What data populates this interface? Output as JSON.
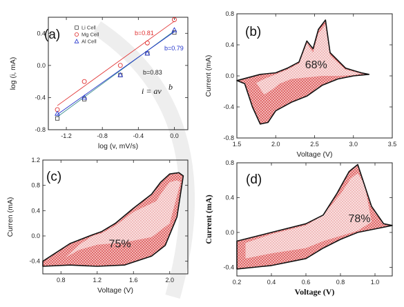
{
  "chart_data": [
    {
      "type": "scatter",
      "panel_label": "(a)",
      "xlabel": "log (v, mV/s)",
      "ylabel": "log (i, mA)",
      "xlim": [
        -1.4,
        0.15
      ],
      "ylim": [
        -0.8,
        0.6
      ],
      "xticks": [
        "-1.2",
        "-0.8",
        "-0.4",
        "0.0"
      ],
      "xtick_values": [
        -1.2,
        -0.8,
        -0.4,
        0.0
      ],
      "yticks": [
        "-0.8",
        "-0.4",
        "0.0",
        "0.4"
      ],
      "ytick_values": [
        -0.8,
        -0.4,
        0.0,
        0.4
      ],
      "legend_position": "top-left",
      "equation": "i = av",
      "equation_exp": "b",
      "series": [
        {
          "name": "Li Cell",
          "marker": "square",
          "color": "#444444",
          "b_label": "b=0.83",
          "fit_color": "#3a8f8f",
          "x": [
            -1.3,
            -1.0,
            -0.6,
            -0.3,
            0.0
          ],
          "y": [
            -0.66,
            -0.42,
            -0.12,
            0.15,
            0.41
          ],
          "fit": [
            [
              -1.3,
              -0.64
            ],
            [
              0.0,
              0.43
            ]
          ]
        },
        {
          "name": "Mg Cell",
          "marker": "circle",
          "color": "#e03030",
          "b_label": "b=0.81",
          "fit_color": "#e03030",
          "x": [
            -1.3,
            -1.0,
            -0.6,
            -0.3,
            0.0
          ],
          "y": [
            -0.55,
            -0.2,
            0.0,
            0.28,
            0.57
          ],
          "fit": [
            [
              -1.3,
              -0.5
            ],
            [
              0.0,
              0.55
            ]
          ]
        },
        {
          "name": "Al Cell",
          "marker": "triangle",
          "color": "#2233cc",
          "b_label": "b=0.79",
          "fit_color": "#2233cc",
          "x": [
            -1.3,
            -1.0,
            -0.6,
            -0.3,
            0.0
          ],
          "y": [
            -0.6,
            -0.4,
            -0.12,
            0.15,
            0.44
          ],
          "fit": [
            [
              -1.3,
              -0.61
            ],
            [
              0.0,
              0.42
            ]
          ]
        }
      ]
    },
    {
      "type": "line",
      "panel_label": "(b)",
      "xlabel": "Voltage (V)",
      "ylabel": "Current (mA)",
      "xlim": [
        1.5,
        3.5
      ],
      "ylim": [
        -0.8,
        0.8
      ],
      "xticks": [
        "1.5",
        "2.0",
        "2.5",
        "3.0",
        "3.5"
      ],
      "xtick_values": [
        1.5,
        2.0,
        2.5,
        3.0,
        3.5
      ],
      "yticks": [
        "-0.8",
        "-0.4",
        "0.0",
        "0.4",
        "0.8"
      ],
      "ytick_values": [
        -0.8,
        -0.4,
        0.0,
        0.4,
        0.8
      ],
      "annotation": "68%",
      "annotation_at": [
        2.52,
        0.1
      ],
      "outer": [
        [
          1.5,
          -0.06
        ],
        [
          1.6,
          -0.1
        ],
        [
          1.7,
          -0.4
        ],
        [
          1.8,
          -0.62
        ],
        [
          1.9,
          -0.6
        ],
        [
          2.0,
          -0.45
        ],
        [
          2.2,
          -0.34
        ],
        [
          2.4,
          -0.26
        ],
        [
          2.6,
          -0.12
        ],
        [
          2.8,
          -0.04
        ],
        [
          3.0,
          0.0
        ],
        [
          3.2,
          0.02
        ],
        [
          3.1,
          0.04
        ],
        [
          2.9,
          0.1
        ],
        [
          2.7,
          0.3
        ],
        [
          2.64,
          0.72
        ],
        [
          2.55,
          0.6
        ],
        [
          2.48,
          0.35
        ],
        [
          2.4,
          0.45
        ],
        [
          2.3,
          0.18
        ],
        [
          2.15,
          0.1
        ],
        [
          2.0,
          0.04
        ],
        [
          1.8,
          0.02
        ],
        [
          1.65,
          -0.02
        ],
        [
          1.5,
          -0.06
        ]
      ],
      "inner": [
        [
          1.75,
          -0.09
        ],
        [
          1.85,
          -0.24
        ],
        [
          1.95,
          -0.18
        ],
        [
          2.05,
          -0.1
        ],
        [
          2.2,
          -0.04
        ],
        [
          2.4,
          -0.02
        ],
        [
          2.6,
          -0.0
        ],
        [
          2.8,
          0.0
        ],
        [
          3.0,
          0.01
        ],
        [
          3.1,
          0.03
        ],
        [
          2.9,
          0.08
        ],
        [
          2.7,
          0.26
        ],
        [
          2.64,
          0.66
        ],
        [
          2.55,
          0.55
        ],
        [
          2.48,
          0.3
        ],
        [
          2.4,
          0.42
        ],
        [
          2.3,
          0.16
        ],
        [
          2.15,
          0.08
        ],
        [
          2.0,
          0.02
        ],
        [
          1.85,
          -0.04
        ],
        [
          1.75,
          -0.09
        ]
      ]
    },
    {
      "type": "line",
      "panel_label": "(c)",
      "xlabel": "Voltage (V)",
      "ylabel": "Curren (mA)",
      "xlim": [
        0.6,
        2.2
      ],
      "ylim": [
        -0.6,
        1.2
      ],
      "xticks": [
        "0.8",
        "1.2",
        "1.6",
        "2.0"
      ],
      "xtick_values": [
        0.8,
        1.2,
        1.6,
        2.0
      ],
      "yticks": [
        "-0.4",
        "0.0",
        "0.4",
        "0.8",
        "1.2"
      ],
      "ytick_values": [
        -0.4,
        0.0,
        0.4,
        0.8,
        1.2
      ],
      "annotation": "75%",
      "annotation_at": [
        1.45,
        -0.18
      ],
      "outer": [
        [
          0.6,
          -0.48
        ],
        [
          0.9,
          -0.46
        ],
        [
          1.2,
          -0.48
        ],
        [
          1.5,
          -0.46
        ],
        [
          1.8,
          -0.32
        ],
        [
          1.95,
          -0.15
        ],
        [
          2.08,
          0.3
        ],
        [
          2.15,
          0.95
        ],
        [
          2.1,
          1.0
        ],
        [
          2.0,
          0.98
        ],
        [
          1.9,
          0.85
        ],
        [
          1.8,
          0.66
        ],
        [
          1.6,
          0.44
        ],
        [
          1.4,
          0.2
        ],
        [
          1.25,
          0.07
        ],
        [
          1.15,
          0.02
        ],
        [
          0.9,
          -0.12
        ],
        [
          0.6,
          -0.4
        ]
      ],
      "inner": [
        [
          0.85,
          -0.34
        ],
        [
          1.0,
          -0.22
        ],
        [
          1.2,
          -0.14
        ],
        [
          1.5,
          -0.1
        ],
        [
          1.8,
          -0.02
        ],
        [
          2.0,
          0.2
        ],
        [
          2.12,
          0.85
        ],
        [
          2.08,
          0.88
        ],
        [
          2.0,
          0.85
        ],
        [
          1.92,
          0.7
        ],
        [
          1.85,
          0.55
        ],
        [
          1.6,
          0.38
        ],
        [
          1.4,
          0.16
        ],
        [
          1.25,
          0.04
        ],
        [
          1.15,
          0.0
        ],
        [
          1.0,
          -0.14
        ],
        [
          0.85,
          -0.34
        ]
      ]
    },
    {
      "type": "line",
      "panel_label": "(d)",
      "xlabel": "Voltage (V)",
      "ylabel": "Current (mA)",
      "xlim": [
        0.2,
        1.1
      ],
      "ylim": [
        -0.5,
        0.8
      ],
      "xticks": [
        "0.2",
        "0.4",
        "0.6",
        "0.8",
        "1.0"
      ],
      "xtick_values": [
        0.2,
        0.4,
        0.6,
        0.8,
        1.0
      ],
      "yticks": [
        "-0.4",
        "0.0",
        "0.4",
        "0.8"
      ],
      "ytick_values": [
        -0.4,
        0.0,
        0.4,
        0.8
      ],
      "annotation": "78%",
      "annotation_at": [
        0.91,
        0.12
      ],
      "outer": [
        [
          0.2,
          -0.42
        ],
        [
          0.4,
          -0.38
        ],
        [
          0.6,
          -0.3
        ],
        [
          0.7,
          -0.18
        ],
        [
          0.8,
          -0.08
        ],
        [
          0.9,
          0.0
        ],
        [
          1.0,
          0.04
        ],
        [
          1.1,
          0.08
        ],
        [
          1.05,
          0.1
        ],
        [
          0.98,
          0.3
        ],
        [
          0.9,
          0.78
        ],
        [
          0.85,
          0.7
        ],
        [
          0.78,
          0.45
        ],
        [
          0.7,
          0.2
        ],
        [
          0.6,
          0.1
        ],
        [
          0.4,
          0.0
        ],
        [
          0.2,
          -0.1
        ]
      ],
      "inner": [
        [
          0.25,
          -0.3
        ],
        [
          0.4,
          -0.24
        ],
        [
          0.6,
          -0.18
        ],
        [
          0.7,
          -0.1
        ],
        [
          0.8,
          -0.04
        ],
        [
          0.9,
          0.02
        ],
        [
          0.98,
          0.12
        ],
        [
          0.94,
          0.55
        ],
        [
          0.9,
          0.68
        ],
        [
          0.86,
          0.62
        ],
        [
          0.8,
          0.44
        ],
        [
          0.7,
          0.2
        ],
        [
          0.6,
          0.08
        ],
        [
          0.4,
          -0.02
        ],
        [
          0.25,
          -0.12
        ],
        [
          0.25,
          -0.3
        ]
      ]
    }
  ]
}
